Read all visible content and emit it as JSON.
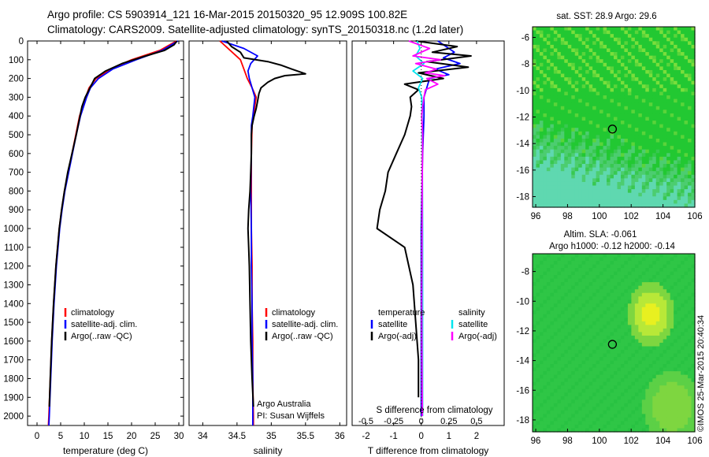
{
  "header": {
    "line1": "Argo profile: CS 5903914_121 16-Mar-2015 20150320_95 12.909S 100.82E",
    "line2": "Climatology: CARS2009. Satellite-adjusted climatology: synTS_20150318.nc (1.2d later)"
  },
  "colors": {
    "climatology": "#ff0000",
    "satellite": "#0000ff",
    "argo": "#000000",
    "sal_satellite": "#00e5ee",
    "sal_argo": "#ff00ff",
    "map_green": "#22c832",
    "map_cyan": "#5fd8b0",
    "map_yellow": "#e8f020"
  },
  "chart_data": [
    {
      "type": "line",
      "name": "temperature",
      "xlabel": "temperature (deg C)",
      "ylabel": "",
      "xticks": [
        0,
        5,
        10,
        15,
        20,
        25,
        30
      ],
      "xlim": [
        -2,
        31
      ],
      "ylim": [
        2050,
        0
      ],
      "yticks": [
        0,
        100,
        200,
        300,
        400,
        500,
        600,
        700,
        800,
        900,
        1000,
        1100,
        1200,
        1300,
        1400,
        1500,
        1600,
        1700,
        1800,
        1900,
        2000
      ],
      "legend": [
        "climatology",
        "satellite-adj. clim.",
        "Argo(..raw -QC)"
      ],
      "series": [
        {
          "name": "climatology",
          "color": "#ff0000",
          "depth": [
            0,
            50,
            100,
            150,
            200,
            250,
            300,
            400,
            500,
            600,
            700,
            800,
            900,
            1000,
            1200,
            1400,
            1600,
            1800,
            2000,
            2050
          ],
          "values": [
            29.5,
            26,
            20,
            15.5,
            12.5,
            11,
            10.3,
            9,
            8.2,
            7.4,
            6.6,
            5.8,
            5.2,
            4.7,
            4,
            3.5,
            3.1,
            2.8,
            2.5,
            2.4
          ]
        },
        {
          "name": "satellite-adj. clim.",
          "color": "#0000ff",
          "depth": [
            0,
            50,
            100,
            150,
            200,
            250,
            300,
            400,
            500,
            600,
            700,
            800,
            900,
            1000,
            1200,
            1400,
            1600,
            1800,
            2000,
            2050
          ],
          "values": [
            29.8,
            26.5,
            21,
            16,
            13,
            11.3,
            10.5,
            9.2,
            8.3,
            7.5,
            6.7,
            5.9,
            5.3,
            4.8,
            4.1,
            3.6,
            3.2,
            2.9,
            2.6,
            2.5
          ]
        },
        {
          "name": "Argo(..raw -QC)",
          "color": "#000000",
          "depth": [
            0,
            20,
            50,
            80,
            120,
            160,
            200,
            250,
            300,
            350,
            400,
            500,
            600,
            700,
            800,
            900,
            1000,
            1200,
            1400,
            1600,
            1800,
            1950
          ],
          "values": [
            29.6,
            29,
            27,
            23,
            18,
            14.5,
            12.2,
            11.2,
            10.2,
            9.5,
            9.1,
            8.3,
            7.4,
            6.5,
            5.8,
            5.2,
            4.7,
            4,
            3.5,
            3.1,
            2.8,
            2.6
          ]
        }
      ]
    },
    {
      "type": "line",
      "name": "salinity",
      "xlabel": "salinity",
      "xticks": [
        34,
        34.5,
        35,
        35.5,
        36
      ],
      "xlim": [
        33.8,
        36.1
      ],
      "ylim": [
        2050,
        0
      ],
      "legend": [
        "climatology",
        "satellite-adj. clim.",
        "Argo(..raw -QC)"
      ],
      "annotations": [
        "Argo Australia",
        "PI: Susan Wijffels"
      ],
      "series": [
        {
          "name": "climatology",
          "color": "#ff0000",
          "depth": [
            0,
            50,
            100,
            150,
            200,
            250,
            300,
            400,
            450,
            600,
            800,
            1000,
            1200,
            1400,
            1600,
            1800,
            2000,
            2050
          ],
          "values": [
            34.25,
            34.4,
            34.55,
            34.6,
            34.65,
            34.72,
            34.78,
            34.74,
            34.72,
            34.71,
            34.71,
            34.71,
            34.72,
            34.72,
            34.73,
            34.73,
            34.74,
            34.74
          ]
        },
        {
          "name": "satellite-adj. clim.",
          "color": "#0000ff",
          "depth": [
            0,
            40,
            80,
            120,
            160,
            200,
            250,
            300,
            400,
            450,
            600,
            800,
            1000,
            1200,
            1400,
            1600,
            1800,
            2000,
            2050
          ],
          "values": [
            34.28,
            34.6,
            34.8,
            34.7,
            34.66,
            34.68,
            34.72,
            34.76,
            34.73,
            34.71,
            34.71,
            34.7,
            34.71,
            34.71,
            34.72,
            34.72,
            34.73,
            34.73,
            34.73
          ]
        },
        {
          "name": "Argo(..raw -QC)",
          "color": "#000000",
          "depth": [
            0,
            30,
            60,
            90,
            110,
            130,
            150,
            165,
            175,
            185,
            200,
            220,
            250,
            280,
            320,
            360,
            400,
            450,
            500,
            600,
            700,
            800,
            900,
            1000,
            1100,
            1200,
            1400,
            1600,
            1800,
            1950
          ],
          "values": [
            34.35,
            34.42,
            34.55,
            34.6,
            34.95,
            35.15,
            35.3,
            35.42,
            35.5,
            35.2,
            35.05,
            34.95,
            34.85,
            34.82,
            34.8,
            34.78,
            34.75,
            34.72,
            34.71,
            34.71,
            34.7,
            34.69,
            34.67,
            34.66,
            34.67,
            34.68,
            34.69,
            34.7,
            34.72,
            34.74
          ]
        }
      ]
    },
    {
      "type": "line",
      "name": "differences",
      "xlabel": "T difference from climatology",
      "xlabel2": "S difference from climatology",
      "xticks": [
        -2,
        -1,
        0,
        1,
        2
      ],
      "xticks2": [
        "-0.5",
        "-0.25",
        "0",
        "0.25",
        "0.5"
      ],
      "xlim": [
        -2.5,
        3
      ],
      "ylim": [
        2050,
        0
      ],
      "legend_left_title": "temperature",
      "legend_right_title": "salinity",
      "legend_left": [
        "satellite",
        "Argo(-adj)"
      ],
      "legend_right": [
        "satellite",
        "Argo(-adj)"
      ],
      "series": [
        {
          "name": "temperature satellite",
          "color": "#0000ff",
          "depth": [
            0,
            30,
            60,
            90,
            120,
            150,
            180,
            200,
            250,
            300,
            400,
            600,
            1000,
            1400,
            1800,
            2000
          ],
          "values": [
            0.6,
            0.9,
            1.2,
            0.8,
            1.4,
            0.5,
            1.0,
            0.3,
            0.2,
            0.1,
            0.1,
            0.05,
            0,
            0,
            0,
            0
          ]
        },
        {
          "name": "temperature Argo(-adj)",
          "color": "#000000",
          "depth": [
            0,
            30,
            60,
            80,
            110,
            140,
            170,
            200,
            230,
            260,
            300,
            350,
            400,
            500,
            600,
            700,
            800,
            900,
            1000,
            1100,
            1300,
            1500,
            1700,
            1900
          ],
          "values": [
            -0.2,
            1.3,
            0.4,
            1.8,
            0.2,
            1.7,
            -0.1,
            0.8,
            -0.6,
            -0.1,
            -0.4,
            -0.35,
            -0.4,
            -0.6,
            -0.9,
            -1.2,
            -1.3,
            -1.5,
            -1.6,
            -0.6,
            -0.3,
            -0.2,
            -0.1,
            -0.1
          ]
        },
        {
          "name": "salinity satellite",
          "color": "#00e5ee",
          "depth": [
            0,
            40,
            80,
            120,
            160,
            200,
            250,
            300,
            400,
            600,
            1000,
            1400,
            1800,
            2000
          ],
          "values": [
            -0.15,
            -0.05,
            -0.2,
            0.1,
            -0.3,
            0.05,
            -0.1,
            0.02,
            0.03,
            0.04,
            0.05,
            0.05,
            0.05,
            0.05
          ]
        },
        {
          "name": "salinity Argo(-adj)",
          "color": "#ff00ff",
          "depth": [
            0,
            40,
            80,
            100,
            120,
            150,
            170,
            185,
            200,
            230,
            260,
            300,
            350,
            400,
            500,
            700,
            1000,
            1400,
            1800,
            2000
          ],
          "values": [
            -0.45,
            0.3,
            -0.3,
            0.7,
            -0.2,
            0.55,
            0.15,
            0.85,
            0.2,
            0.6,
            0.15,
            0.1,
            0.05,
            0.02,
            0.05,
            0.04,
            0.03,
            0.02,
            0.03,
            0.04
          ]
        }
      ]
    },
    {
      "type": "heatmap",
      "name": "sst-map",
      "title": "sat. SST: 28.9 Argo: 29.6",
      "xticks": [
        96,
        98,
        100,
        102,
        104,
        106
      ],
      "yticks": [
        -6,
        -8,
        -10,
        -12,
        -14,
        -16,
        -18
      ],
      "xlim": [
        95.8,
        106
      ],
      "ylim": [
        -18.8,
        -5.2
      ],
      "marker": {
        "x": 100.82,
        "y": -12.909
      }
    },
    {
      "type": "heatmap",
      "name": "sla-map",
      "title": "Altim. SLA: -0.061",
      "subtitle": "Argo h1000: -0.12 h2000: -0.14",
      "xticks": [
        96,
        98,
        100,
        102,
        104,
        106
      ],
      "yticks": [
        -8,
        -10,
        -12,
        -14,
        -16,
        -18
      ],
      "xlim": [
        95.8,
        106
      ],
      "ylim": [
        -18.8,
        -6.8
      ],
      "marker": {
        "x": 100.82,
        "y": -12.909
      }
    }
  ],
  "footer": {
    "credit": "©IMOS 25-Mar-2015 20:40:34"
  }
}
